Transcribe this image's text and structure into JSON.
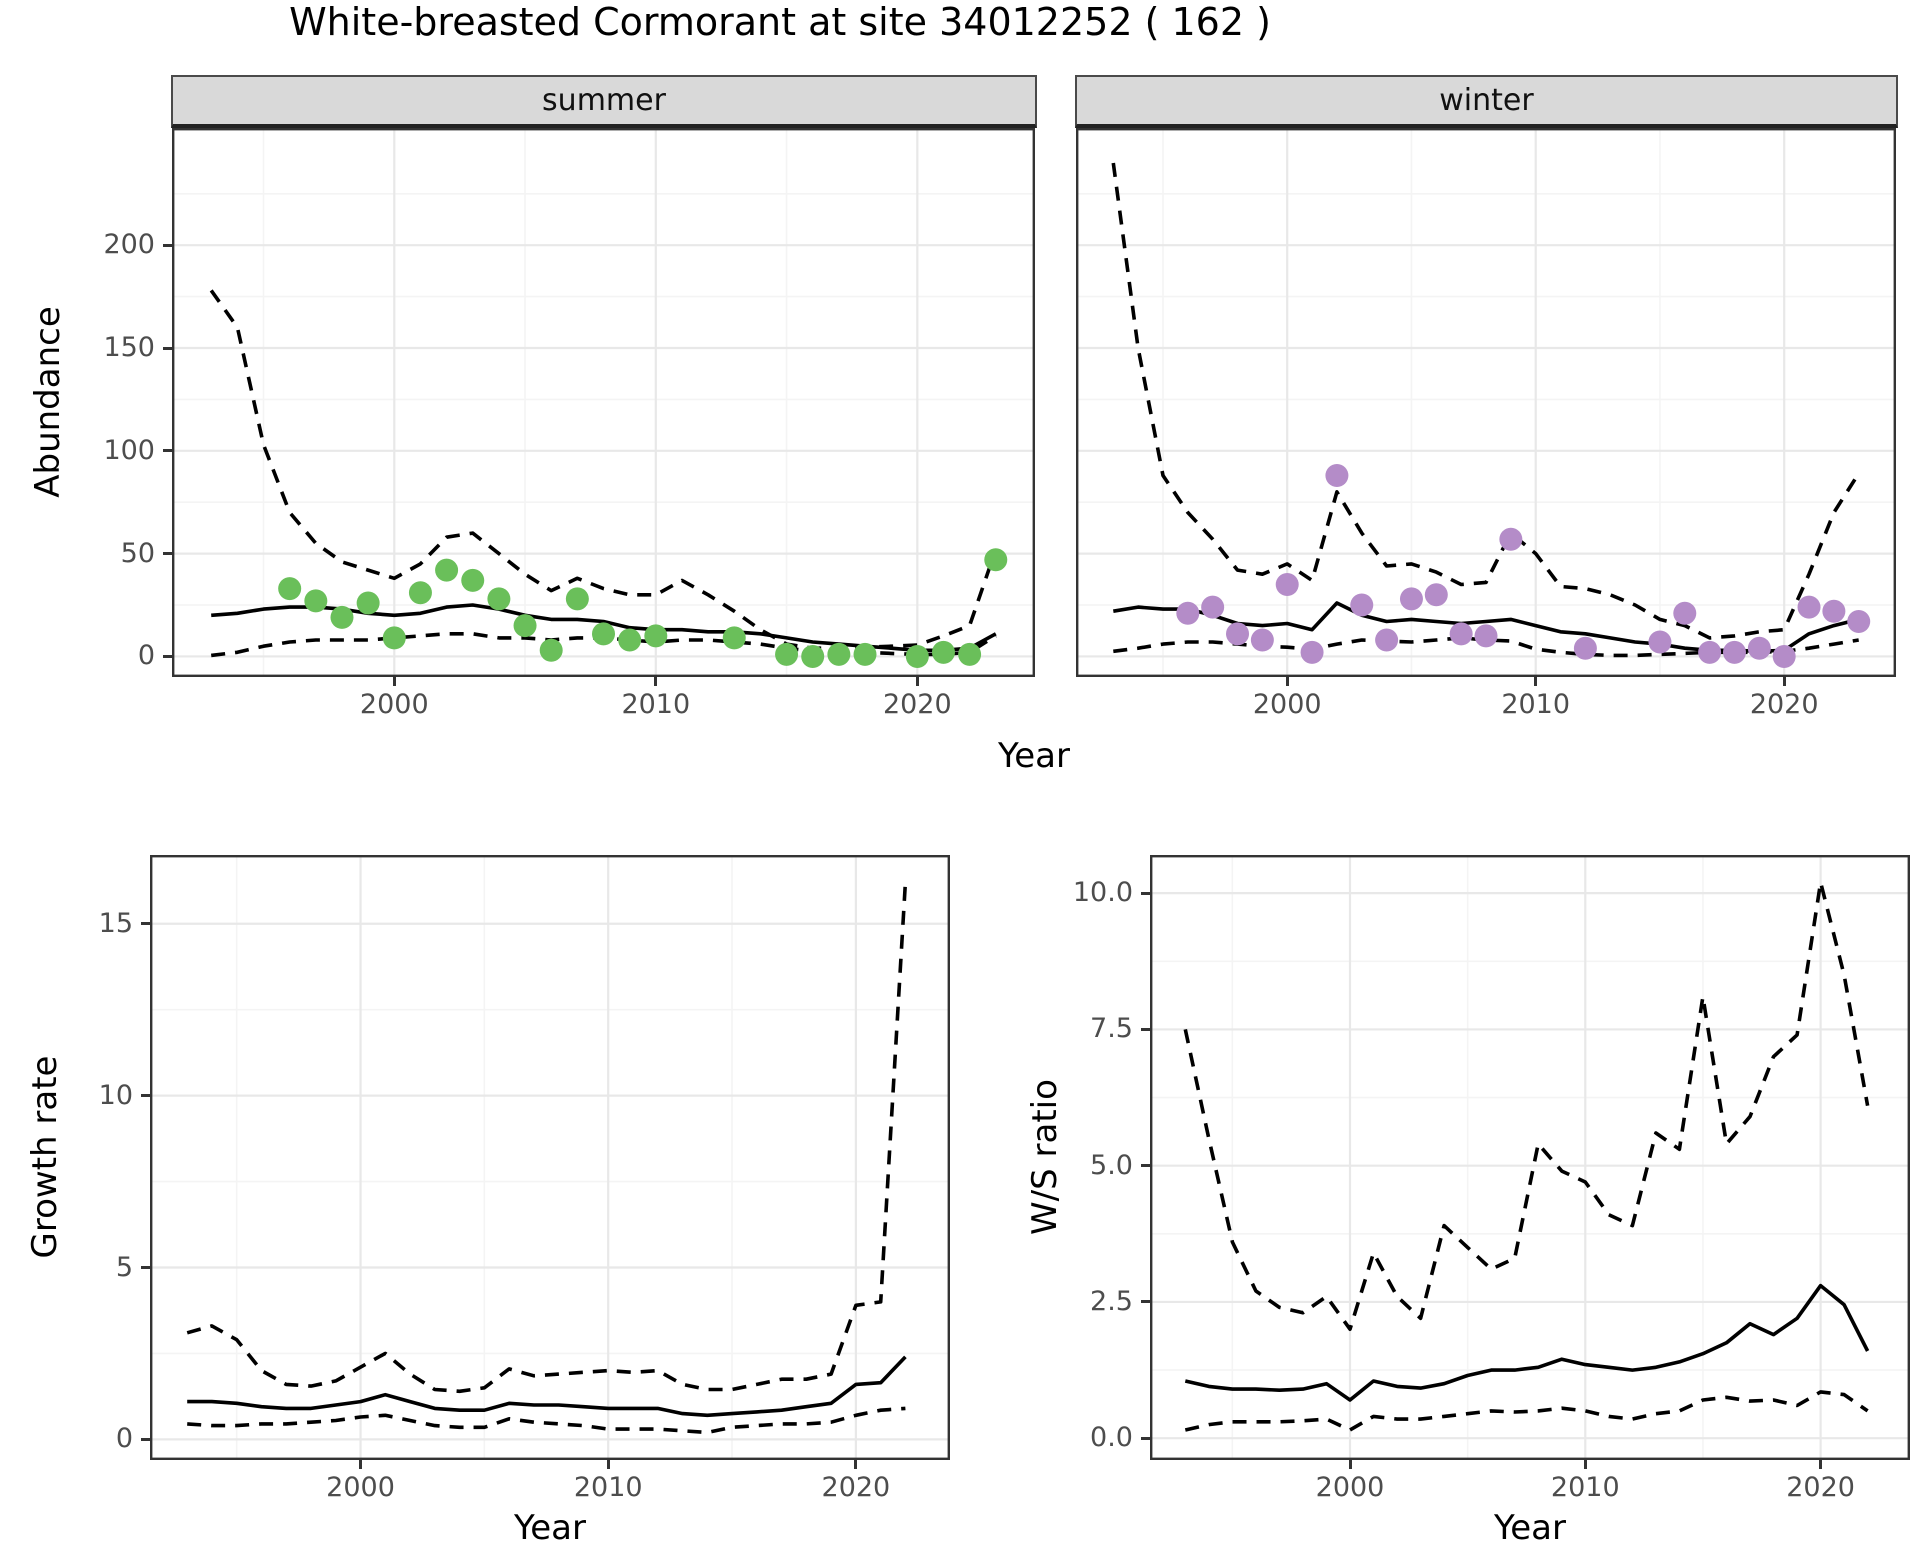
{
  "title": "White-breasted Cormorant at site 34012252 ( 162 )",
  "colors": {
    "summer_point": "#6abf5a",
    "winter_point": "#b48cc8",
    "line": "#000000",
    "panel_border": "#333333",
    "grid_major": "#e8e8e8",
    "grid_minor": "#f4f4f4",
    "strip_bg": "#d9d9d9",
    "axis_text": "#4d4d4d"
  },
  "chart_data": [
    {
      "id": "abundance-summer",
      "type": "line",
      "facet": "summer",
      "xlabel": "Year",
      "ylabel": "Abundance",
      "xlim": [
        1991.5,
        2024.5
      ],
      "ylim": [
        -10,
        257
      ],
      "xticks": [
        2000,
        2010,
        2020
      ],
      "xtick_labels": [
        "2000",
        "2010",
        "2020"
      ],
      "xminor": [
        1995,
        2005,
        2015
      ],
      "yticks": [
        0,
        50,
        100,
        150,
        200
      ],
      "ytick_labels": [
        "0",
        "50",
        "100",
        "150",
        "200"
      ],
      "yminor": [
        25,
        75,
        125,
        175,
        225
      ],
      "grid": true,
      "legend": "none",
      "x_line": [
        1993,
        1994,
        1995,
        1996,
        1997,
        1998,
        1999,
        2000,
        2001,
        2002,
        2003,
        2004,
        2005,
        2006,
        2007,
        2008,
        2009,
        2010,
        2011,
        2012,
        2013,
        2014,
        2015,
        2016,
        2017,
        2018,
        2019,
        2020,
        2021,
        2022,
        2023
      ],
      "series": [
        {
          "name": "upper 95% CI",
          "style": "dashed",
          "y": [
            178,
            160,
            103,
            70,
            55,
            46,
            42,
            38,
            45,
            58,
            60,
            50,
            40,
            32,
            38,
            33,
            30,
            30,
            37,
            30,
            22,
            13,
            6,
            4,
            4,
            4.5,
            5,
            5.5,
            10,
            15,
            52
          ]
        },
        {
          "name": "lower 95% CI",
          "style": "dashed",
          "y": [
            0.5,
            2,
            5,
            7,
            8,
            8,
            8,
            9,
            10,
            11,
            11,
            9,
            9,
            8,
            9,
            9,
            8,
            7,
            8,
            8,
            7,
            6,
            4,
            2.5,
            2,
            2,
            1.5,
            1,
            1,
            2,
            10
          ]
        },
        {
          "name": "modelled mean",
          "style": "solid",
          "y": [
            20,
            21,
            23,
            24,
            24,
            23,
            21,
            20,
            21,
            24,
            25,
            23,
            20,
            18,
            18,
            17,
            14,
            13,
            13,
            12,
            12,
            11,
            9,
            7,
            6,
            5,
            4,
            3,
            3,
            4,
            11
          ]
        }
      ],
      "points": {
        "name": "observed counts",
        "color": "#6abf5a",
        "x": [
          1996,
          1997,
          1998,
          1999,
          2000,
          2001,
          2002,
          2003,
          2004,
          2005,
          2006,
          2007,
          2008,
          2009,
          2010,
          2013,
          2015,
          2016,
          2017,
          2018,
          2020,
          2021,
          2022,
          2023
        ],
        "y": [
          33,
          27,
          19,
          26,
          9,
          31,
          42,
          37,
          28,
          15,
          3,
          28,
          11,
          8,
          10,
          9,
          1,
          0,
          1,
          1,
          0,
          2,
          1,
          47
        ]
      }
    },
    {
      "id": "abundance-winter",
      "type": "line",
      "facet": "winter",
      "xlabel": "Year",
      "ylabel": "Abundance",
      "xlim": [
        1991.5,
        2024.5
      ],
      "ylim": [
        -10,
        257
      ],
      "xticks": [
        2000,
        2010,
        2020
      ],
      "xtick_labels": [
        "2000",
        "2010",
        "2020"
      ],
      "xminor": [
        1995,
        2005,
        2015
      ],
      "yticks": [
        0,
        50,
        100,
        150,
        200
      ],
      "ytick_labels": [
        "0",
        "50",
        "100",
        "150",
        "200"
      ],
      "yminor": [
        25,
        75,
        125,
        175,
        225
      ],
      "grid": true,
      "legend": "none",
      "x_line": [
        1993,
        1994,
        1995,
        1996,
        1997,
        1998,
        1999,
        2000,
        2001,
        2002,
        2003,
        2004,
        2005,
        2006,
        2007,
        2008,
        2009,
        2010,
        2011,
        2012,
        2013,
        2014,
        2015,
        2016,
        2017,
        2018,
        2019,
        2020,
        2021,
        2022,
        2023
      ],
      "series": [
        {
          "name": "upper 95% CI",
          "style": "dashed",
          "y": [
            240,
            150,
            88,
            70,
            57,
            42,
            40,
            45,
            37,
            80,
            60,
            44,
            45,
            41,
            35,
            36,
            60,
            50,
            34,
            33,
            30,
            25,
            18,
            15,
            9,
            10,
            12,
            13,
            40,
            70,
            89
          ]
        },
        {
          "name": "lower 95% CI",
          "style": "dashed",
          "y": [
            2.5,
            4,
            6,
            7,
            7,
            6,
            5,
            4.5,
            3.5,
            6,
            8,
            7.5,
            7,
            8,
            9,
            8,
            7.5,
            3.5,
            2,
            1,
            0.5,
            0.5,
            1,
            1.5,
            2,
            2,
            2,
            2.5,
            4,
            6,
            8
          ]
        },
        {
          "name": "modelled mean",
          "style": "solid",
          "y": [
            22,
            24,
            23,
            23,
            20,
            16,
            15,
            16,
            13,
            26,
            20,
            17,
            18,
            17,
            16,
            17,
            18,
            15,
            12,
            11,
            9,
            7,
            6,
            4,
            3,
            3,
            2.5,
            3,
            11,
            15,
            18
          ]
        }
      ],
      "points": {
        "name": "observed counts",
        "color": "#b48cc8",
        "x": [
          1996,
          1997,
          1998,
          1999,
          2000,
          2001,
          2002,
          2003,
          2004,
          2005,
          2006,
          2007,
          2008,
          2009,
          2012,
          2015,
          2016,
          2017,
          2018,
          2019,
          2020,
          2021,
          2022,
          2023
        ],
        "y": [
          21,
          24,
          11,
          8,
          35,
          2,
          88,
          25,
          8,
          28,
          30,
          11,
          10,
          57,
          4,
          7,
          21,
          2,
          2,
          4,
          0,
          24,
          22,
          17
        ]
      }
    },
    {
      "id": "growth-rate",
      "type": "line",
      "facet": "",
      "xlabel": "Year",
      "ylabel": "Growth rate",
      "xlim": [
        1991.5,
        2023.8
      ],
      "ylim": [
        -0.6,
        17.0
      ],
      "xticks": [
        2000,
        2010,
        2020
      ],
      "xtick_labels": [
        "2000",
        "2010",
        "2020"
      ],
      "xminor": [
        1995,
        2005,
        2015
      ],
      "yticks": [
        0,
        5,
        10,
        15
      ],
      "ytick_labels": [
        "0",
        "5",
        "10",
        "15"
      ],
      "yminor": [
        2.5,
        7.5,
        12.5
      ],
      "grid": true,
      "legend": "none",
      "x_line": [
        1993,
        1994,
        1995,
        1996,
        1997,
        1998,
        1999,
        2000,
        2001,
        2002,
        2003,
        2004,
        2005,
        2006,
        2007,
        2008,
        2009,
        2010,
        2011,
        2012,
        2013,
        2014,
        2015,
        2016,
        2017,
        2018,
        2019,
        2020,
        2021,
        2022
      ],
      "series": [
        {
          "name": "upper 95% CI",
          "style": "dashed",
          "y": [
            3.1,
            3.3,
            2.9,
            2.0,
            1.6,
            1.55,
            1.7,
            2.1,
            2.5,
            1.9,
            1.45,
            1.4,
            1.5,
            2.05,
            1.85,
            1.9,
            1.95,
            2.0,
            1.95,
            2.0,
            1.6,
            1.45,
            1.45,
            1.6,
            1.75,
            1.75,
            1.9,
            3.9,
            4.0,
            16.2
          ]
        },
        {
          "name": "lower 95% CI",
          "style": "dashed",
          "y": [
            0.45,
            0.4,
            0.4,
            0.45,
            0.45,
            0.5,
            0.55,
            0.65,
            0.7,
            0.55,
            0.4,
            0.35,
            0.35,
            0.6,
            0.5,
            0.45,
            0.4,
            0.3,
            0.3,
            0.3,
            0.25,
            0.2,
            0.35,
            0.4,
            0.45,
            0.45,
            0.5,
            0.7,
            0.85,
            0.9
          ]
        },
        {
          "name": "modelled mean",
          "style": "solid",
          "y": [
            1.1,
            1.1,
            1.05,
            0.95,
            0.9,
            0.9,
            1.0,
            1.1,
            1.3,
            1.1,
            0.9,
            0.85,
            0.85,
            1.05,
            1.0,
            1.0,
            0.95,
            0.9,
            0.9,
            0.9,
            0.75,
            0.7,
            0.75,
            0.8,
            0.85,
            0.95,
            1.05,
            1.6,
            1.65,
            2.4
          ]
        }
      ],
      "points": null
    },
    {
      "id": "ws-ratio",
      "type": "line",
      "facet": "",
      "xlabel": "Year",
      "ylabel": "W/S ratio",
      "xlim": [
        1991.5,
        2023.8
      ],
      "ylim": [
        -0.4,
        10.7
      ],
      "xticks": [
        2000,
        2010,
        2020
      ],
      "xtick_labels": [
        "2000",
        "2010",
        "2020"
      ],
      "xminor": [
        1995,
        2005,
        2015
      ],
      "yticks": [
        0,
        2.5,
        5,
        7.5,
        10
      ],
      "ytick_labels": [
        "0.0",
        "2.5",
        "5.0",
        "7.5",
        "10.0"
      ],
      "yminor": [
        1.25,
        3.75,
        6.25,
        8.75
      ],
      "grid": true,
      "legend": "none",
      "x_line": [
        1993,
        1994,
        1995,
        1996,
        1997,
        1998,
        1999,
        2000,
        2001,
        2002,
        2003,
        2004,
        2005,
        2006,
        2007,
        2008,
        2009,
        2010,
        2011,
        2012,
        2013,
        2014,
        2015,
        2016,
        2017,
        2018,
        2019,
        2020,
        2021,
        2022
      ],
      "series": [
        {
          "name": "upper 95% CI",
          "style": "dashed",
          "y": [
            7.5,
            5.5,
            3.6,
            2.7,
            2.4,
            2.3,
            2.6,
            2.0,
            3.4,
            2.6,
            2.2,
            3.9,
            3.5,
            3.1,
            3.3,
            5.4,
            4.9,
            4.7,
            4.1,
            3.9,
            5.6,
            5.3,
            8.1,
            5.4,
            5.9,
            7.0,
            7.4,
            10.2,
            8.5,
            6.1
          ]
        },
        {
          "name": "lower 95% CI",
          "style": "dashed",
          "y": [
            0.15,
            0.25,
            0.3,
            0.3,
            0.3,
            0.32,
            0.35,
            0.15,
            0.4,
            0.35,
            0.35,
            0.4,
            0.45,
            0.5,
            0.48,
            0.5,
            0.55,
            0.5,
            0.4,
            0.35,
            0.45,
            0.5,
            0.7,
            0.75,
            0.68,
            0.7,
            0.6,
            0.85,
            0.8,
            0.5
          ]
        },
        {
          "name": "modelled mean",
          "style": "solid",
          "y": [
            1.05,
            0.95,
            0.9,
            0.9,
            0.88,
            0.9,
            1.0,
            0.7,
            1.05,
            0.95,
            0.92,
            1.0,
            1.15,
            1.25,
            1.25,
            1.3,
            1.45,
            1.35,
            1.3,
            1.25,
            1.3,
            1.4,
            1.55,
            1.75,
            2.1,
            1.9,
            2.2,
            2.8,
            2.45,
            1.6
          ]
        }
      ],
      "points": null
    }
  ]
}
